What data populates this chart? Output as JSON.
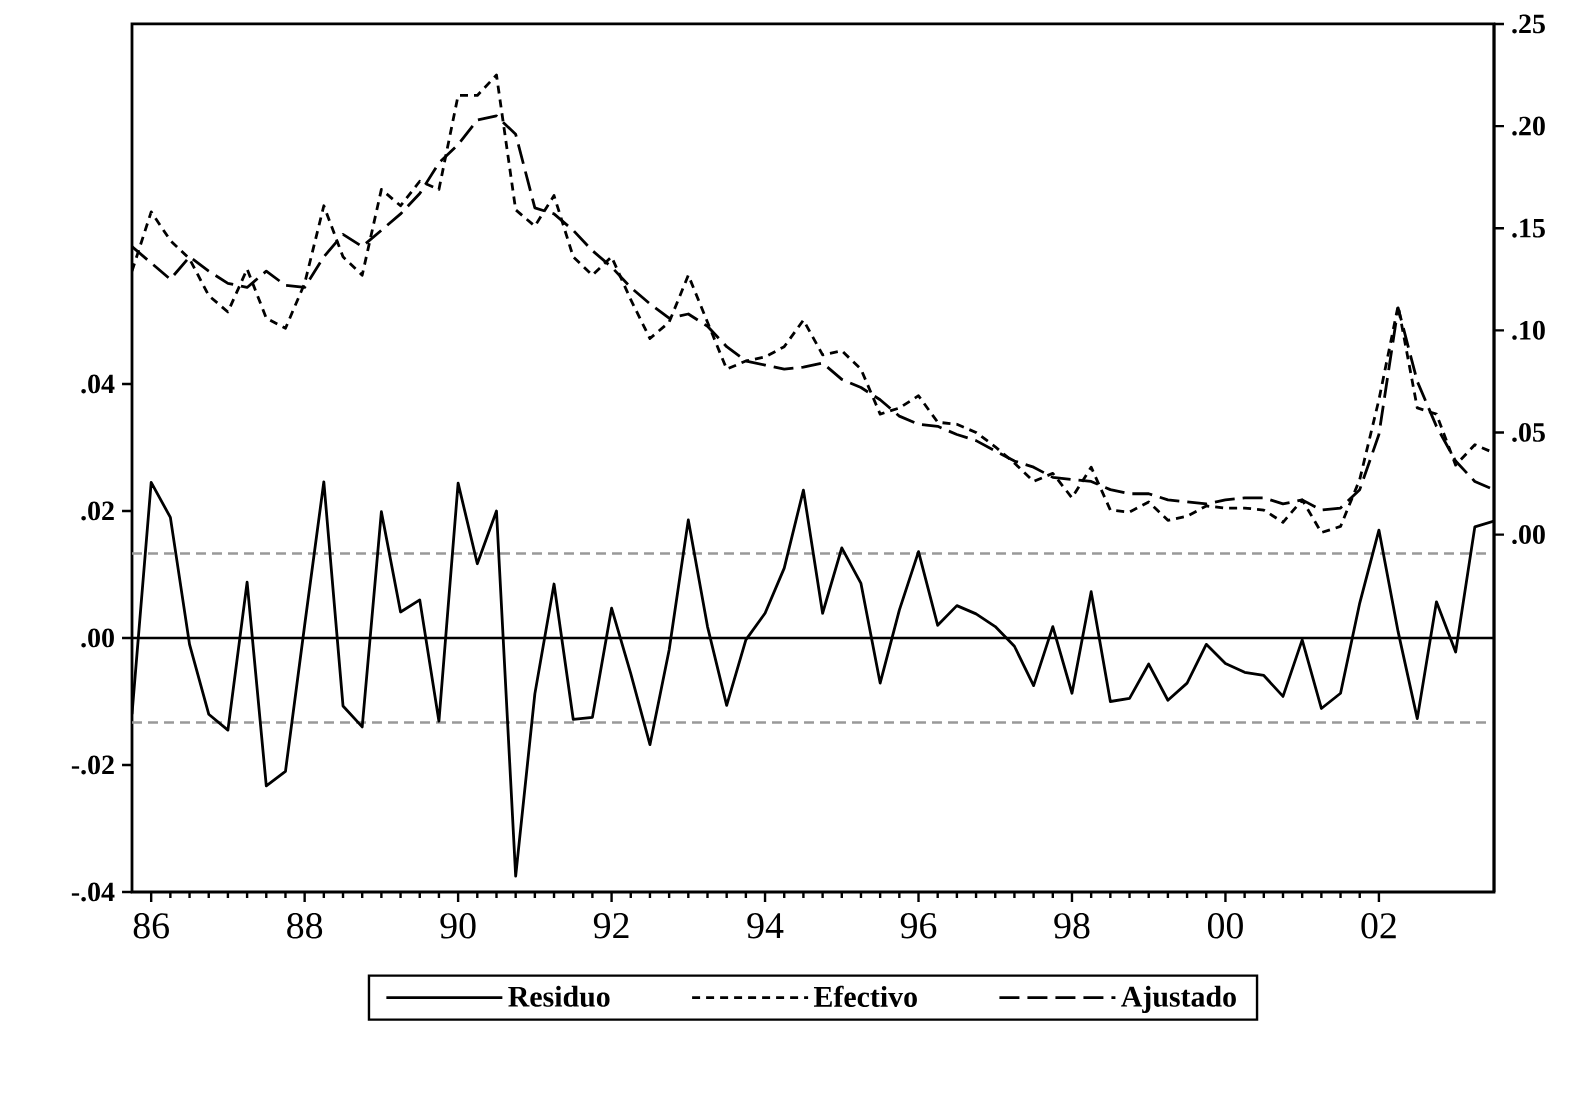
{
  "chart_data": {
    "type": "line",
    "x": [
      1985.75,
      1986,
      1986.25,
      1986.5,
      1986.75,
      1987,
      1987.25,
      1987.5,
      1987.75,
      1988,
      1988.25,
      1988.5,
      1988.75,
      1989,
      1989.25,
      1989.5,
      1989.75,
      1990,
      1990.25,
      1990.5,
      1990.75,
      1991,
      1991.25,
      1991.5,
      1991.75,
      1992,
      1992.25,
      1992.5,
      1992.75,
      1993,
      1993.25,
      1993.5,
      1993.75,
      1994,
      1994.25,
      1994.5,
      1994.75,
      1995,
      1995.25,
      1995.5,
      1995.75,
      1996,
      1996.25,
      1996.5,
      1996.75,
      1997,
      1997.25,
      1997.5,
      1997.75,
      1998,
      1998.25,
      1998.5,
      1998.75,
      1999,
      1999.25,
      1999.5,
      1999.75,
      2000,
      2000.25,
      2000.5,
      2000.75,
      2001,
      2001.25,
      2001.5,
      2001.75,
      2002,
      2002.25,
      2002.5,
      2002.75,
      2003,
      2003.25,
      2003.5
    ],
    "series": [
      {
        "name": "Residuo",
        "color": "#000000",
        "line_style": "solid",
        "values": [
          -0.012,
          0.0245,
          0.019,
          -0.001,
          -0.012,
          -0.0145,
          0.0088,
          -0.0233,
          -0.021,
          0.002,
          0.0246,
          -0.0107,
          -0.014,
          0.0199,
          0.0041,
          0.006,
          -0.0131,
          0.0244,
          0.0117,
          0.02,
          -0.0375,
          -0.0088,
          0.0085,
          -0.0128,
          -0.0125,
          0.0047,
          -0.0056,
          -0.0168,
          -0.0019,
          0.0186,
          0.0018,
          -0.0106,
          -0.0003,
          0.0039,
          0.011,
          0.0233,
          0.0039,
          0.0142,
          0.0086,
          -0.0071,
          0.0044,
          0.0136,
          0.002,
          0.0051,
          0.0038,
          0.0018,
          -0.0013,
          -0.0075,
          0.0018,
          -0.0087,
          0.0073,
          -0.01,
          -0.0095,
          -0.0041,
          -0.0098,
          -0.0071,
          -0.001,
          -0.004,
          -0.0054,
          -0.0059,
          -0.0092,
          -0.0003,
          -0.0111,
          -0.0087,
          0.0055,
          0.017,
          0.001,
          -0.0127,
          0.0057,
          -0.0022,
          0.0175,
          0.0184
        ]
      },
      {
        "name": "Efectivo",
        "color": "#000000",
        "line_style": "dashed",
        "axis": "y2",
        "values": [
          0.129,
          0.158,
          0.144,
          0.135,
          0.117,
          0.109,
          0.13,
          0.106,
          0.101,
          0.123,
          0.161,
          0.136,
          0.127,
          0.169,
          0.161,
          0.173,
          0.169,
          0.215,
          0.215,
          0.225,
          0.159,
          0.151,
          0.166,
          0.136,
          0.127,
          0.136,
          0.115,
          0.096,
          0.104,
          0.127,
          0.104,
          0.081,
          0.085,
          0.087,
          0.092,
          0.105,
          0.088,
          0.09,
          0.081,
          0.059,
          0.062,
          0.068,
          0.055,
          0.054,
          0.05,
          0.043,
          0.035,
          0.026,
          0.03,
          0.018,
          0.033,
          0.012,
          0.011,
          0.016,
          0.007,
          0.009,
          0.014,
          0.013,
          0.013,
          0.012,
          0.006,
          0.017,
          0.001,
          0.004,
          0.027,
          0.066,
          0.112,
          0.062,
          0.059,
          0.034,
          0.044,
          0.04
        ]
      },
      {
        "name": "Ajustado",
        "color": "#000000",
        "line_style": "dashed",
        "axis": "y2",
        "values": [
          0.141,
          0.133,
          0.125,
          0.136,
          0.129,
          0.123,
          0.121,
          0.129,
          0.122,
          0.121,
          0.136,
          0.147,
          0.141,
          0.149,
          0.157,
          0.167,
          0.182,
          0.191,
          0.203,
          0.205,
          0.196,
          0.16,
          0.157,
          0.149,
          0.139,
          0.131,
          0.121,
          0.113,
          0.106,
          0.108,
          0.102,
          0.092,
          0.085,
          0.083,
          0.081,
          0.082,
          0.084,
          0.076,
          0.072,
          0.066,
          0.058,
          0.054,
          0.053,
          0.049,
          0.046,
          0.041,
          0.036,
          0.033,
          0.028,
          0.027,
          0.026,
          0.022,
          0.02,
          0.02,
          0.017,
          0.016,
          0.015,
          0.017,
          0.018,
          0.018,
          0.015,
          0.017,
          0.012,
          0.013,
          0.022,
          0.049,
          0.111,
          0.075,
          0.053,
          0.036,
          0.026,
          0.022
        ]
      }
    ],
    "xlim": [
      1985.75,
      2003.5
    ],
    "xticks": [
      {
        "value": 1986,
        "label": "86"
      },
      {
        "value": 1988,
        "label": "88"
      },
      {
        "value": 1990,
        "label": "90"
      },
      {
        "value": 1992,
        "label": "92"
      },
      {
        "value": 1994,
        "label": "94"
      },
      {
        "value": 1996,
        "label": "96"
      },
      {
        "value": 1998,
        "label": "98"
      },
      {
        "value": 2000,
        "label": "00"
      },
      {
        "value": 2002,
        "label": "02"
      }
    ],
    "ylim": [
      -0.04,
      0.0967
    ],
    "yticks": [
      {
        "value": -0.04,
        "label": "-.04"
      },
      {
        "value": -0.02,
        "label": "-.02"
      },
      {
        "value": 0,
        "label": ".00"
      },
      {
        "value": 0.02,
        "label": ".02"
      },
      {
        "value": 0.04,
        "label": ".04"
      }
    ],
    "y2lim": [
      -0.175,
      0.25
    ],
    "y2ticks": [
      {
        "value": 0,
        "label": ".00"
      },
      {
        "value": 0.05,
        "label": ".05"
      },
      {
        "value": 0.1,
        "label": ".10"
      },
      {
        "value": 0.15,
        "label": ".15"
      },
      {
        "value": 0.2,
        "label": ".20"
      },
      {
        "value": 0.25,
        "label": ".25"
      }
    ],
    "ref_lines": [
      {
        "axis": "y",
        "value": 0.0133,
        "color": "#999999",
        "line_style": "dashed"
      },
      {
        "axis": "y",
        "value": -0.0133,
        "color": "#999999",
        "line_style": "dashed"
      },
      {
        "axis": "y",
        "value": 0,
        "color": "#000000",
        "line_style": "solid"
      }
    ],
    "legend": "bottom"
  }
}
